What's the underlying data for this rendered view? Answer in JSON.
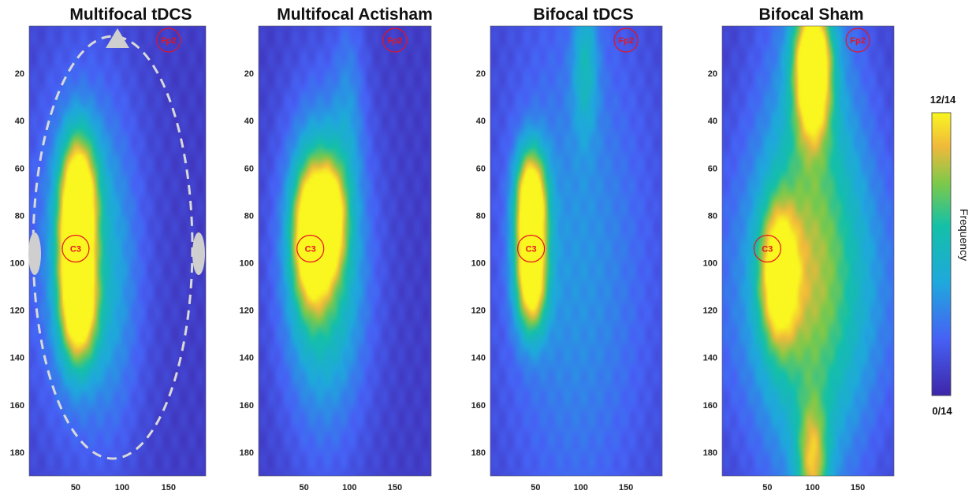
{
  "chart_data": [
    {
      "type": "heatmap",
      "title": "Multifocal tDCS",
      "x_ticks": [
        50,
        100,
        150
      ],
      "y_ticks": [
        20,
        40,
        60,
        80,
        100,
        120,
        140,
        160,
        180
      ],
      "xlim": [
        0,
        190
      ],
      "ylim": [
        0,
        190
      ],
      "hotspots": [
        {
          "x": 50,
          "y": 95,
          "sx": 13,
          "sy": 26,
          "v": 0.98
        },
        {
          "x": 55,
          "y": 70,
          "sx": 14,
          "sy": 18,
          "v": 0.55
        },
        {
          "x": 55,
          "y": 120,
          "sx": 14,
          "sy": 16,
          "v": 0.5
        },
        {
          "x": 55,
          "y": 95,
          "sx": 40,
          "sy": 55,
          "v": 0.3
        },
        {
          "x": 90,
          "y": 110,
          "sx": 22,
          "sy": 45,
          "v": 0.15
        }
      ],
      "markers": [
        {
          "label": "Fp2",
          "x": 150,
          "y": 5
        },
        {
          "label": "C3",
          "x": 50,
          "y": 94
        }
      ]
    },
    {
      "type": "heatmap",
      "title": "Multifocal Actisham",
      "x_ticks": [
        50,
        100,
        150
      ],
      "y_ticks": [
        20,
        40,
        60,
        80,
        100,
        120,
        140,
        160,
        180
      ],
      "xlim": [
        0,
        190
      ],
      "ylim": [
        0,
        190
      ],
      "hotspots": [
        {
          "x": 58,
          "y": 88,
          "sx": 14,
          "sy": 20,
          "v": 0.9
        },
        {
          "x": 80,
          "y": 80,
          "sx": 12,
          "sy": 16,
          "v": 0.6
        },
        {
          "x": 70,
          "y": 95,
          "sx": 30,
          "sy": 40,
          "v": 0.4
        },
        {
          "x": 75,
          "y": 110,
          "sx": 35,
          "sy": 55,
          "v": 0.22
        },
        {
          "x": 100,
          "y": 30,
          "sx": 12,
          "sy": 30,
          "v": 0.15
        }
      ],
      "markers": [
        {
          "label": "Fp2",
          "x": 150,
          "y": 5
        },
        {
          "label": "C3",
          "x": 57,
          "y": 94
        }
      ]
    },
    {
      "type": "heatmap",
      "title": "Bifocal tDCS",
      "x_ticks": [
        50,
        100,
        150
      ],
      "y_ticks": [
        20,
        40,
        60,
        80,
        100,
        120,
        140,
        160,
        180
      ],
      "xlim": [
        0,
        190
      ],
      "ylim": [
        0,
        190
      ],
      "hotspots": [
        {
          "x": 45,
          "y": 90,
          "sx": 12,
          "sy": 20,
          "v": 0.95
        },
        {
          "x": 45,
          "y": 70,
          "sx": 12,
          "sy": 14,
          "v": 0.55
        },
        {
          "x": 45,
          "y": 112,
          "sx": 12,
          "sy": 14,
          "v": 0.45
        },
        {
          "x": 105,
          "y": 15,
          "sx": 10,
          "sy": 22,
          "v": 0.3
        },
        {
          "x": 95,
          "y": 100,
          "sx": 60,
          "sy": 80,
          "v": 0.27
        }
      ],
      "markers": [
        {
          "label": "Fp2",
          "x": 150,
          "y": 5
        },
        {
          "label": "C3",
          "x": 45,
          "y": 94
        }
      ]
    },
    {
      "type": "heatmap",
      "title": "Bifocal Sham",
      "x_ticks": [
        50,
        100,
        150
      ],
      "y_ticks": [
        20,
        40,
        60,
        80,
        100,
        120,
        140,
        160,
        180
      ],
      "xlim": [
        0,
        190
      ],
      "ylim": [
        0,
        190
      ],
      "hotspots": [
        {
          "x": 100,
          "y": 10,
          "sx": 14,
          "sy": 14,
          "v": 0.8
        },
        {
          "x": 100,
          "y": 30,
          "sx": 14,
          "sy": 16,
          "v": 0.6
        },
        {
          "x": 62,
          "y": 105,
          "sx": 14,
          "sy": 20,
          "v": 0.75
        },
        {
          "x": 100,
          "y": 90,
          "sx": 40,
          "sy": 80,
          "v": 0.45
        },
        {
          "x": 100,
          "y": 185,
          "sx": 12,
          "sy": 18,
          "v": 0.55
        },
        {
          "x": 95,
          "y": 110,
          "sx": 75,
          "sy": 45,
          "v": 0.3
        }
      ],
      "markers": [
        {
          "label": "Fp2",
          "x": 150,
          "y": 5
        },
        {
          "label": "C3",
          "x": 50,
          "y": 94
        }
      ]
    }
  ],
  "colorbar": {
    "max_label": "12/14",
    "min_label": "0/14",
    "label": "Frequency"
  },
  "colors": {
    "low": "#3a2aa0",
    "high": "#f8f420",
    "marker": "#e8141c",
    "overlay": "#cfcfcf"
  }
}
